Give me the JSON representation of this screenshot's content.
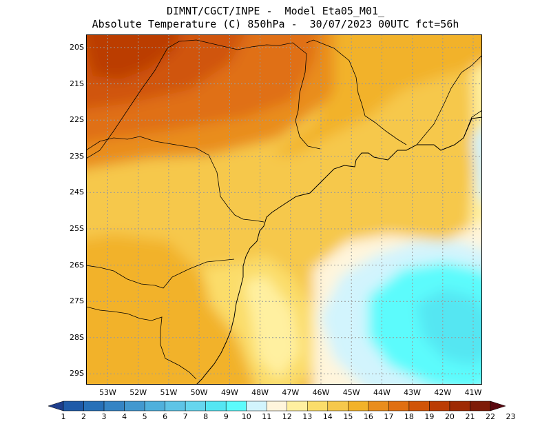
{
  "title": {
    "line1": "DIMNT/CGCT/INPE -  Model Eta05_M01_",
    "line2": "Absolute Temperature (C) 850hPa -  30/07/2023 00UTC fct=56h"
  },
  "axes": {
    "lat_labels": [
      "20S",
      "21S",
      "22S",
      "23S",
      "24S",
      "25S",
      "26S",
      "27S",
      "28S",
      "29S"
    ],
    "lon_labels": [
      "53W",
      "52W",
      "51W",
      "50W",
      "49W",
      "48W",
      "47W",
      "46W",
      "45W",
      "44W",
      "43W",
      "42W",
      "41W"
    ],
    "lat_range": [
      -29.5,
      -19.9
    ],
    "lon_range": [
      -53.6,
      -40.6
    ],
    "grid": "dotted"
  },
  "colorbar": {
    "labels": [
      "1",
      "2",
      "3",
      "4",
      "5",
      "6",
      "7",
      "8",
      "9",
      "10",
      "11",
      "12",
      "13",
      "14",
      "15",
      "16",
      "17",
      "18",
      "19",
      "20",
      "21",
      "22",
      "23"
    ],
    "colors": [
      "#1e3e8c",
      "#1f5aa8",
      "#2770b8",
      "#3584c4",
      "#4298cf",
      "#4fb0dc",
      "#5ec4e6",
      "#66d6ee",
      "#55e6f2",
      "#5cfbfc",
      "#d2f4fd",
      "#fff5dc",
      "#fff0a0",
      "#fbdd6a",
      "#f6c84c",
      "#f2b22a",
      "#e98d1d",
      "#e06f12",
      "#d05408",
      "#bb3c04",
      "#9e2a04",
      "#7e1c08",
      "#5a0810"
    ]
  },
  "colors": {
    "coast_line": "#000000",
    "grid": "#9a9a9a"
  }
}
